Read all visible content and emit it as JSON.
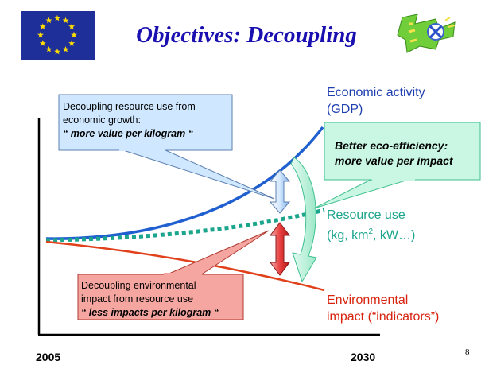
{
  "title": "Objectives: Decoupling",
  "page_number": "8",
  "x_axis": {
    "start": "2005",
    "end": "2030"
  },
  "curves": {
    "economic": {
      "line1": "Economic activity",
      "line2": "(GDP)",
      "color": "#1f5fd0"
    },
    "resource": {
      "line1": "Resource use",
      "line2_pre": "(kg, km",
      "line2_sup": "2",
      "line2_post": ", kW…)",
      "color": "#1aa58c"
    },
    "environmental": {
      "line1": "Environmental",
      "line2": "impact (“indicators”)",
      "color": "#e0401a"
    }
  },
  "callouts": {
    "resource_decoupling": {
      "line1": "Decoupling resource use from",
      "line2": "economic growth:",
      "emphasis": "“ more value per kilogram “",
      "fill": "#cfe8ff"
    },
    "impact_decoupling": {
      "line1": "Decoupling environmental",
      "line2": "impact from resource use",
      "emphasis": "“ less impacts per kilogram “",
      "fill": "#f5a6a0"
    },
    "eco_efficiency": {
      "line1": "Better eco-efficiency:",
      "line2": "more value per impact",
      "fill": "#c9f7e3"
    }
  },
  "logos": {
    "eu_flag": "eu-flag-icon",
    "project_logo": "project-logo-icon"
  }
}
